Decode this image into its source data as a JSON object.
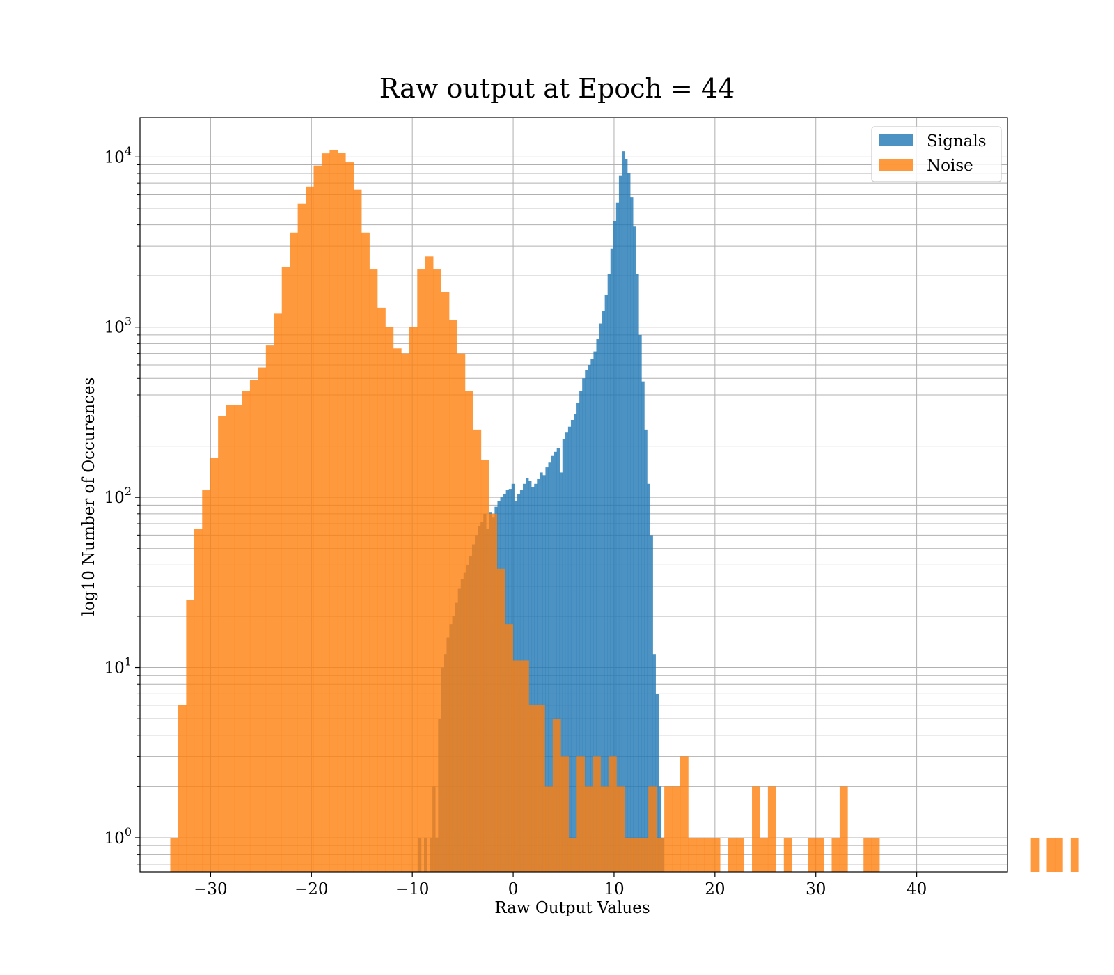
{
  "chart_data": {
    "type": "histogram",
    "title": "Raw output at Epoch = 44",
    "xlabel": "Raw Output Values",
    "ylabel": "log10 Number of Occurences",
    "xlim": [
      -37,
      49
    ],
    "ylim": [
      0.63,
      17000
    ],
    "yscale": "log",
    "grid": true,
    "legend_position": "top-right",
    "x_ticks": [
      -30,
      -20,
      -10,
      0,
      10,
      20,
      30,
      40
    ],
    "x_tick_labels": [
      "−30",
      "−20",
      "−10",
      "0",
      "10",
      "20",
      "30",
      "40"
    ],
    "y_ticks": [
      {
        "value": 1,
        "base": "10",
        "exp": "0"
      },
      {
        "value": 10,
        "base": "10",
        "exp": "1"
      },
      {
        "value": 100,
        "base": "10",
        "exp": "2"
      },
      {
        "value": 1000,
        "base": "10",
        "exp": "3"
      },
      {
        "value": 10000,
        "base": "10",
        "exp": "4"
      }
    ],
    "series": [
      {
        "name": "Signals",
        "color": "#1f77b4",
        "opacity": 0.8,
        "bin_start": -9.4,
        "bin_width": 0.28,
        "counts": [
          1,
          0,
          1,
          0,
          1,
          2,
          1,
          5,
          10,
          12,
          15,
          18,
          20,
          24,
          29,
          33,
          36,
          40,
          45,
          53,
          60,
          68,
          72,
          80,
          65,
          82,
          76,
          88,
          95,
          100,
          105,
          110,
          112,
          120,
          95,
          105,
          110,
          120,
          130,
          125,
          115,
          120,
          128,
          140,
          135,
          150,
          160,
          175,
          185,
          195,
          140,
          220,
          240,
          260,
          285,
          310,
          360,
          420,
          500,
          560,
          600,
          650,
          720,
          850,
          1050,
          1250,
          1550,
          2050,
          2900,
          4200,
          5400,
          7800,
          10800,
          9700,
          8000,
          5800,
          3900,
          2050,
          900,
          480,
          250,
          120,
          60,
          12,
          7,
          2,
          1
        ]
      },
      {
        "name": "Noise",
        "color": "#ff7f0e",
        "opacity": 0.8,
        "bin_start": -34.0,
        "bin_width": 0.79,
        "counts": [
          1,
          6,
          25,
          65,
          110,
          170,
          300,
          350,
          350,
          420,
          490,
          580,
          780,
          1200,
          2250,
          3600,
          5300,
          6700,
          8900,
          10500,
          11000,
          10600,
          9300,
          6400,
          3600,
          2200,
          1300,
          1000,
          750,
          700,
          1000,
          2200,
          2600,
          2200,
          1600,
          1100,
          700,
          420,
          250,
          165,
          80,
          38,
          18,
          11,
          11,
          6,
          6,
          2,
          5,
          3,
          1,
          3,
          2,
          3,
          2,
          3,
          2,
          1,
          1,
          1,
          2,
          1,
          2,
          2,
          3,
          1,
          1,
          1,
          1,
          0,
          1,
          1,
          0,
          2,
          1,
          2,
          0,
          1,
          0,
          0,
          1,
          1,
          0,
          1,
          2,
          0,
          0,
          1,
          1,
          0,
          0,
          0,
          0,
          0,
          0,
          0,
          0,
          0,
          0,
          0,
          0,
          0,
          0,
          0,
          0,
          0,
          0,
          0,
          1,
          0,
          1,
          1,
          0,
          1
        ]
      }
    ]
  }
}
